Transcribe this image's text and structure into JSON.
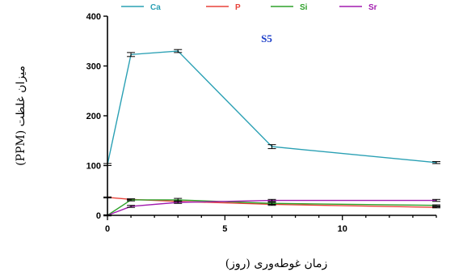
{
  "chart_data": {
    "type": "line",
    "title": "",
    "annotation": "S5",
    "xlabel": "زمان غوطه‌وری (روز)",
    "ylabel": "میزان غلظت (PPM)",
    "xlim": [
      0,
      14
    ],
    "ylim": [
      0,
      400
    ],
    "xticks": [
      "0",
      "5",
      "10"
    ],
    "yticks": [
      "0",
      "100",
      "200",
      "300",
      "400"
    ],
    "grid": false,
    "legend_position": "top",
    "series": [
      {
        "name": "Ca",
        "color": "#2aa0b4",
        "x": [
          0,
          1,
          3,
          7,
          14
        ],
        "y": [
          102,
          323,
          330,
          138,
          106
        ],
        "err": [
          2,
          4,
          3,
          4,
          2
        ]
      },
      {
        "name": "P",
        "color": "#e8423a",
        "x": [
          0,
          1,
          3,
          7,
          14
        ],
        "y": [
          36,
          32,
          28,
          22,
          16
        ],
        "err": [
          1,
          1,
          2,
          2,
          1
        ]
      },
      {
        "name": "Si",
        "color": "#2ea12a",
        "x": [
          0,
          1,
          3,
          7,
          14
        ],
        "y": [
          0,
          31,
          31,
          24,
          20
        ],
        "err": [
          1,
          2,
          3,
          2,
          1
        ]
      },
      {
        "name": "Sr",
        "color": "#a21caf",
        "x": [
          0,
          1,
          3,
          7,
          14
        ],
        "y": [
          0,
          18,
          26,
          30,
          30
        ],
        "err": [
          1,
          2,
          2,
          2,
          2
        ]
      }
    ]
  }
}
